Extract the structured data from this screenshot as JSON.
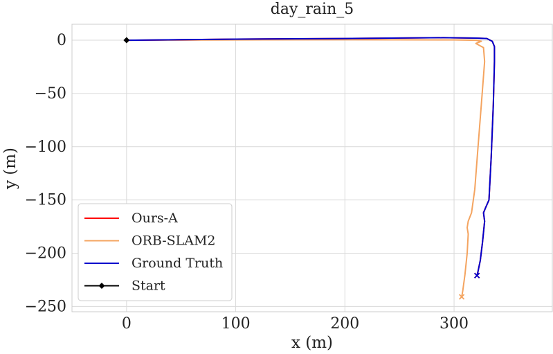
{
  "chart_data": {
    "type": "line",
    "title": "day_rain_5",
    "xlabel": "x (m)",
    "ylabel": "y (m)",
    "xlim": [
      -50,
      390
    ],
    "ylim": [
      -255,
      15
    ],
    "xticks": [
      0,
      100,
      200,
      300
    ],
    "yticks": [
      0,
      -50,
      -100,
      -150,
      -200,
      -250
    ],
    "xtick_labels": [
      "0",
      "100",
      "200",
      "300"
    ],
    "ytick_labels": [
      "0",
      "−50",
      "−100",
      "−150",
      "−200",
      "−250"
    ],
    "grid": true,
    "legend_position": "lower-left",
    "series": [
      {
        "name": "Ours-A",
        "color": "#ff0000",
        "points": [
          [
            0,
            0
          ],
          [
            100,
            1
          ],
          [
            200,
            1.6
          ],
          [
            290,
            2.4
          ],
          [
            320,
            2.0
          ],
          [
            330,
            1.6
          ],
          [
            335,
            -1
          ],
          [
            337,
            -6
          ],
          [
            337,
            -20
          ],
          [
            336,
            -60
          ],
          [
            334,
            -110
          ],
          [
            332,
            -150
          ],
          [
            329,
            -157
          ],
          [
            327,
            -162
          ],
          [
            328,
            -170
          ],
          [
            326,
            -190
          ],
          [
            324,
            -207
          ],
          [
            322,
            -217
          ],
          [
            321,
            -221
          ]
        ],
        "end_marker": "x"
      },
      {
        "name": "ORB-SLAM2",
        "color": "#f4a460",
        "points": [
          [
            0,
            0
          ],
          [
            100,
            0.3
          ],
          [
            200,
            0.4
          ],
          [
            300,
            0.3
          ],
          [
            320,
            0.0
          ],
          [
            325,
            -1
          ],
          [
            320,
            -3
          ],
          [
            327,
            -7
          ],
          [
            328,
            -20
          ],
          [
            325,
            -60
          ],
          [
            322,
            -100
          ],
          [
            319,
            -140
          ],
          [
            316,
            -162
          ],
          [
            313,
            -170
          ],
          [
            312,
            -176
          ],
          [
            313,
            -182
          ],
          [
            312,
            -200
          ],
          [
            310,
            -220
          ],
          [
            308,
            -235
          ],
          [
            307,
            -241
          ]
        ],
        "end_marker": "x"
      },
      {
        "name": "Ground Truth",
        "color": "#0000cc",
        "points": [
          [
            0,
            0
          ],
          [
            100,
            1
          ],
          [
            200,
            1.6
          ],
          [
            290,
            2.4
          ],
          [
            320,
            2.0
          ],
          [
            330,
            1.6
          ],
          [
            335,
            -1
          ],
          [
            337,
            -6
          ],
          [
            337,
            -20
          ],
          [
            336,
            -60
          ],
          [
            334,
            -110
          ],
          [
            332,
            -150
          ],
          [
            329,
            -157
          ],
          [
            327,
            -162
          ],
          [
            328,
            -170
          ],
          [
            326,
            -190
          ],
          [
            324,
            -207
          ],
          [
            322,
            -217
          ],
          [
            321,
            -221
          ]
        ],
        "end_marker": "x"
      },
      {
        "name": "Start",
        "color": "#000000",
        "points": [
          [
            0,
            0
          ]
        ],
        "marker": "diamond"
      }
    ]
  }
}
